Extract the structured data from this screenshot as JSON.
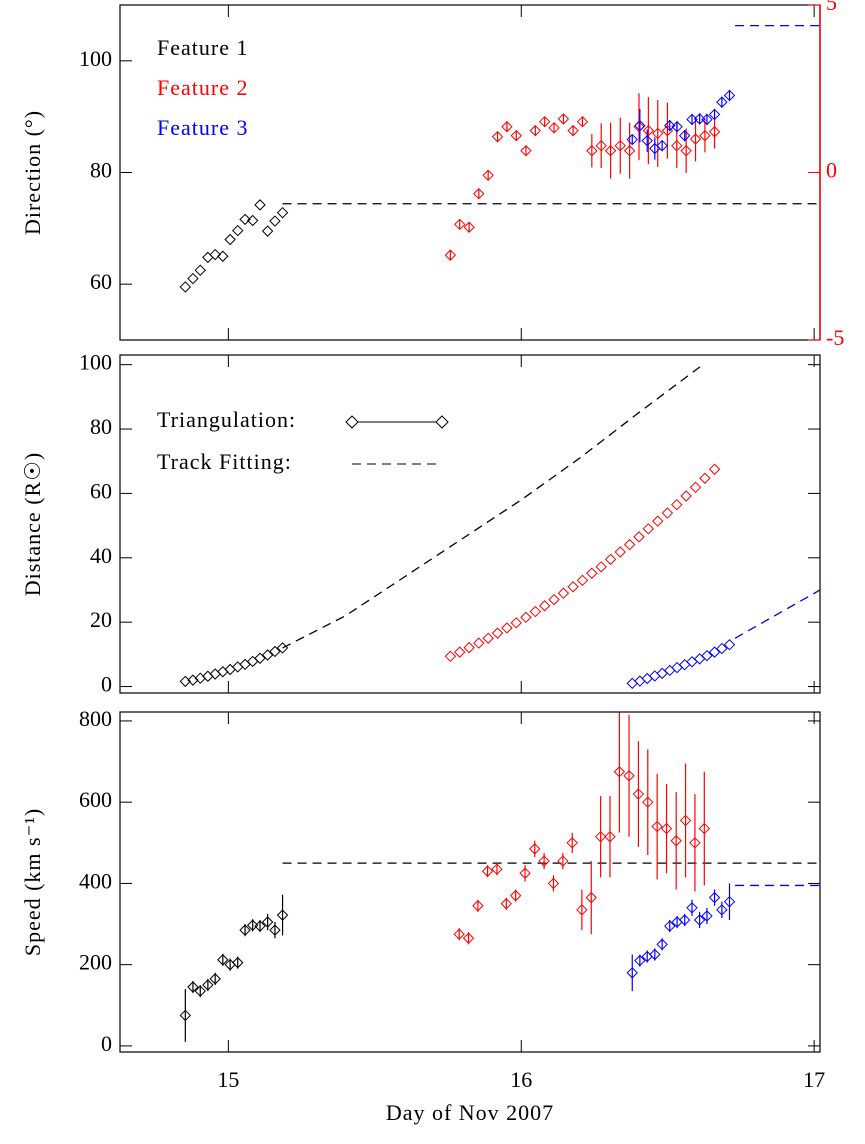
{
  "chart_data": [
    {
      "type": "scatter",
      "ylabel": "Direction (°)",
      "xlim": [
        14.63,
        17.02
      ],
      "xticks": [
        15,
        16,
        17
      ],
      "xticklabels": false,
      "ylim": [
        50,
        110
      ],
      "yticks": [
        60,
        80,
        100
      ],
      "y2lim": [
        -5,
        5
      ],
      "y2ticks": [
        -5,
        0,
        5
      ],
      "y2color": "#ff0000",
      "series": [
        {
          "name": "Feature 1",
          "color": "#000000",
          "style": "marker",
          "x": [
            14.853,
            14.879,
            14.904,
            14.93,
            14.955,
            14.981,
            15.006,
            15.032,
            15.057,
            15.083,
            15.108,
            15.134,
            15.159,
            15.185
          ],
          "values": [
            59.5,
            61,
            62.5,
            64.8,
            65.3,
            65,
            68,
            69.6,
            71.6,
            71.4,
            74.2,
            69.5,
            71.3,
            72.8
          ]
        },
        {
          "color": "#000000",
          "style": "dashed",
          "x": [
            15.185,
            17.02
          ],
          "values": [
            74.4,
            74.4
          ]
        },
        {
          "name": "Feature 2",
          "color": "#ff0000",
          "style": "marker",
          "x": [
            15.758,
            15.79,
            15.822,
            15.855,
            15.887,
            15.919,
            15.951,
            15.983,
            16.016,
            16.048,
            16.08,
            16.112,
            16.144,
            16.177,
            16.209,
            16.241,
            16.273,
            16.305,
            16.338,
            16.37,
            16.402,
            16.434,
            16.466,
            16.499,
            16.531,
            16.563,
            16.595,
            16.627,
            16.66
          ],
          "values": [
            65.2,
            70.7,
            70.2,
            76.2,
            79.5,
            86.4,
            88.2,
            86.6,
            83.9,
            87.5,
            89.1,
            88,
            89.6,
            87.5,
            89.1,
            83.9,
            84.8,
            83.9,
            84.8,
            83.9,
            88.2,
            87.5,
            87,
            87.5,
            84.8,
            83.9,
            86,
            86.6,
            87.3
          ],
          "errors": [
            1,
            0.8,
            0.8,
            0.8,
            0.8,
            0.8,
            0.8,
            0.8,
            0.8,
            0.8,
            0.8,
            0.8,
            0.8,
            0.8,
            0.8,
            3,
            4,
            5,
            5,
            5,
            6,
            6,
            6,
            5,
            4,
            4,
            4,
            3,
            3
          ]
        },
        {
          "name": "Feature 3",
          "color": "#0000ff",
          "style": "marker",
          "x": [
            16.379,
            16.405,
            16.43,
            16.456,
            16.481,
            16.507,
            16.532,
            16.558,
            16.583,
            16.609,
            16.634,
            16.66,
            16.685,
            16.711
          ],
          "values": [
            85.9,
            88.4,
            85.7,
            84.3,
            84.8,
            88.4,
            88.2,
            86.6,
            89.5,
            89.6,
            89.5,
            90.4,
            92.6,
            93.8
          ],
          "errors": [
            0.8,
            3,
            2,
            2,
            1,
            1,
            1,
            1,
            1,
            1,
            1,
            1,
            1,
            1
          ]
        },
        {
          "color": "#0000ff",
          "style": "dashed",
          "x": [
            16.73,
            17.02
          ],
          "values": [
            106.3,
            106.3
          ]
        }
      ]
    },
    {
      "type": "scatter",
      "ylabel": "Distance (R☉)",
      "xlim": [
        14.63,
        17.02
      ],
      "xticks": [
        15,
        16,
        17
      ],
      "xticklabels": false,
      "ylim": [
        -2,
        103
      ],
      "yticks": [
        0,
        20,
        40,
        60,
        80,
        100
      ],
      "legend_entries": [
        "Triangulation:",
        "Track Fitting:"
      ],
      "series": [
        {
          "color": "#000000",
          "style": "marker",
          "x": [
            14.853,
            14.879,
            14.904,
            14.93,
            14.955,
            14.981,
            15.006,
            15.032,
            15.057,
            15.083,
            15.108,
            15.134,
            15.159,
            15.185
          ],
          "values": [
            1.6,
            2,
            2.6,
            3.2,
            3.9,
            4.6,
            5.3,
            6.1,
            6.9,
            7.8,
            8.8,
            9.8,
            10.9,
            12
          ]
        },
        {
          "color": "#000000",
          "style": "dashed",
          "x": [
            15.185,
            15.4,
            15.6,
            15.8,
            16,
            16.2,
            16.4,
            16.62
          ],
          "values": [
            12,
            22,
            34,
            46,
            58,
            71,
            85,
            100
          ]
        },
        {
          "color": "#ff0000",
          "style": "marker",
          "x": [
            15.758,
            15.79,
            15.822,
            15.855,
            15.887,
            15.919,
            15.951,
            15.983,
            16.016,
            16.048,
            16.08,
            16.112,
            16.144,
            16.177,
            16.209,
            16.241,
            16.273,
            16.305,
            16.338,
            16.37,
            16.402,
            16.434,
            16.466,
            16.499,
            16.531,
            16.563,
            16.595,
            16.627,
            16.66
          ],
          "values": [
            9.4,
            10.7,
            12.1,
            13.5,
            15,
            16.6,
            18.2,
            19.8,
            21.5,
            23.3,
            25.1,
            27,
            29,
            31,
            33,
            35.2,
            37.2,
            39.5,
            41.8,
            44.1,
            46.5,
            49,
            51.4,
            53.9,
            56.5,
            59.2,
            61.9,
            64.7,
            67.5
          ]
        },
        {
          "color": "#0000ff",
          "style": "marker",
          "x": [
            16.379,
            16.405,
            16.43,
            16.456,
            16.481,
            16.507,
            16.532,
            16.558,
            16.583,
            16.609,
            16.634,
            16.66,
            16.685,
            16.711
          ],
          "values": [
            1,
            1.7,
            2.5,
            3.3,
            4.1,
            5,
            5.9,
            6.8,
            7.7,
            8.6,
            9.6,
            10.7,
            11.8,
            13
          ]
        },
        {
          "color": "#0000ff",
          "style": "dashed",
          "x": [
            16.73,
            17.02
          ],
          "values": [
            15,
            30
          ]
        }
      ]
    },
    {
      "type": "scatter",
      "ylabel": "Speed (km s⁻¹)",
      "xlabel": "Day of Nov 2007",
      "xlim": [
        14.63,
        17.02
      ],
      "xticks": [
        15,
        16,
        17
      ],
      "xticklabels": true,
      "ylim": [
        -15,
        822
      ],
      "yticks": [
        0,
        200,
        400,
        600,
        800
      ],
      "series": [
        {
          "color": "#000000",
          "style": "marker",
          "x": [
            14.853,
            14.879,
            14.904,
            14.93,
            14.955,
            14.981,
            15.006,
            15.032,
            15.057,
            15.083,
            15.108,
            15.134,
            15.159,
            15.185
          ],
          "values": [
            75,
            145,
            135,
            150,
            165,
            212,
            200,
            205,
            285,
            297,
            295,
            305,
            285,
            322
          ],
          "errors": [
            65,
            15,
            15,
            15,
            15,
            15,
            15,
            15,
            15,
            15,
            15,
            20,
            20,
            50
          ]
        },
        {
          "color": "#000000",
          "style": "dashed",
          "x": [
            15.185,
            17.02
          ],
          "values": [
            450,
            450
          ]
        },
        {
          "color": "#ff0000",
          "style": "marker",
          "x": [
            15.788,
            15.82,
            15.852,
            15.885,
            15.917,
            15.949,
            15.981,
            16.013,
            16.046,
            16.078,
            16.11,
            16.142,
            16.174,
            16.207,
            16.239,
            16.271,
            16.303,
            16.335,
            16.368,
            16.4,
            16.432,
            16.464,
            16.496,
            16.529,
            16.561,
            16.593,
            16.625
          ],
          "values": [
            275,
            265,
            345,
            430,
            435,
            350,
            370,
            425,
            485,
            455,
            400,
            455,
            500,
            335,
            365,
            515,
            515,
            675,
            665,
            620,
            600,
            540,
            535,
            505,
            555,
            500,
            535
          ],
          "errors": [
            15,
            15,
            15,
            15,
            15,
            15,
            15,
            20,
            20,
            20,
            20,
            20,
            25,
            50,
            90,
            100,
            100,
            150,
            150,
            130,
            130,
            130,
            110,
            120,
            140,
            120,
            140
          ]
        },
        {
          "color": "#0000ff",
          "style": "marker",
          "x": [
            16.379,
            16.405,
            16.43,
            16.456,
            16.481,
            16.507,
            16.532,
            16.558,
            16.583,
            16.609,
            16.634,
            16.66,
            16.685,
            16.711
          ],
          "values": [
            180,
            210,
            220,
            225,
            250,
            295,
            305,
            310,
            340,
            310,
            320,
            365,
            335,
            355
          ],
          "errors": [
            45,
            15,
            15,
            15,
            15,
            15,
            15,
            15,
            20,
            20,
            20,
            20,
            20,
            45
          ]
        },
        {
          "color": "#0000ff",
          "style": "dashed",
          "x": [
            16.73,
            17.02
          ],
          "values": [
            395,
            395
          ]
        }
      ]
    }
  ]
}
